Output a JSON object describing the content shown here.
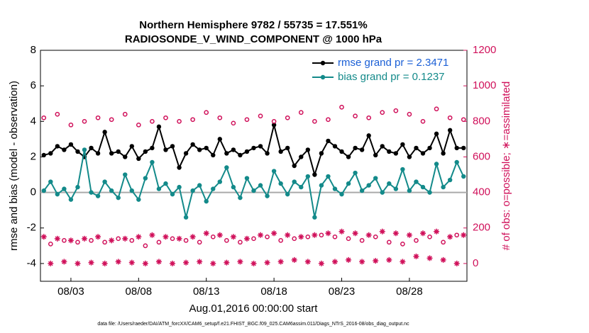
{
  "chart_data": {
    "type": "line",
    "title": "Northern Hemisphere 9782 / 55735 = 17.551%",
    "subtitle": "RADIOSONDE_V_WIND_COMPONENT @ 1000 hPa",
    "x_label": "Aug.01,2016 00:00:00 start",
    "y_label": "rmse and bias (model - observation)",
    "y2_label": "# of obs: o=possible; ∗=assimilated",
    "footnote": "data file: /Users/raeder/DAI/ATM_forcXX/CAM6_setup/f.e21.FHIST_BGC.f09_025.CAM6assim.011/Diags_NTrS_2016-08/obs_diag_output.nc",
    "x": [
      0,
      0.5,
      1,
      1.5,
      2,
      2.5,
      3,
      3.5,
      4,
      4.5,
      5,
      5.5,
      6,
      6.5,
      7,
      7.5,
      8,
      8.5,
      9,
      9.5,
      10,
      10.5,
      11,
      11.5,
      12,
      12.5,
      13,
      13.5,
      14,
      14.5,
      15,
      15.5,
      16,
      16.5,
      17,
      17.5,
      18,
      18.5,
      19,
      19.5,
      20,
      20.5,
      21,
      21.5,
      22,
      22.5,
      23,
      23.5,
      24,
      24.5,
      25,
      25.5,
      26,
      26.5,
      27,
      27.5,
      28,
      28.5,
      29,
      29.5,
      30,
      30.5,
      31
    ],
    "xlim": [
      -0.25,
      31.25
    ],
    "xticks": [
      {
        "value": 2,
        "label": "08/03"
      },
      {
        "value": 7,
        "label": "08/08"
      },
      {
        "value": 12,
        "label": "08/13"
      },
      {
        "value": 17,
        "label": "08/18"
      },
      {
        "value": 22,
        "label": "08/23"
      },
      {
        "value": 27,
        "label": "08/28"
      }
    ],
    "ylim": [
      -5,
      8
    ],
    "yticks": [
      -4,
      -2,
      0,
      2,
      4,
      6,
      8
    ],
    "y2lim": [
      -100,
      1200
    ],
    "y2ticks": [
      0,
      200,
      400,
      600,
      800,
      1000,
      1200
    ],
    "y2_color": "#d0105a",
    "hline": 0,
    "legend": "upper right",
    "series": [
      {
        "name": "rmse grand pr = 2.3471",
        "color": "#000000",
        "marker": "dot",
        "line": true,
        "values": [
          2.1,
          2.2,
          2.6,
          2.4,
          2.7,
          2.3,
          2.0,
          2.5,
          2.2,
          3.4,
          2.2,
          2.3,
          2.0,
          2.6,
          1.9,
          2.3,
          2.5,
          3.7,
          2.4,
          2.6,
          1.4,
          2.2,
          2.7,
          2.4,
          2.5,
          2.1,
          3.0,
          2.2,
          2.4,
          2.1,
          2.3,
          2.5,
          2.6,
          2.2,
          3.8,
          2.3,
          2.5,
          1.5,
          2.0,
          2.4,
          1.0,
          2.2,
          2.9,
          2.6,
          2.3,
          2.0,
          2.5,
          2.4,
          3.2,
          2.1,
          2.6,
          2.3,
          2.2,
          2.7,
          2.0,
          2.5,
          2.2,
          2.5,
          3.3,
          2.2,
          3.5,
          2.5,
          2.5
        ]
      },
      {
        "name": "bias grand pr = 0.1237",
        "color": "#138a8a",
        "marker": "dot",
        "line": true,
        "values": [
          0.1,
          0.6,
          -0.1,
          0.2,
          -0.4,
          0.3,
          2.4,
          0.0,
          -0.2,
          0.6,
          0.1,
          -0.3,
          1.0,
          0.1,
          -0.4,
          0.8,
          1.7,
          0.2,
          0.5,
          -0.1,
          0.3,
          -1.4,
          0.1,
          0.4,
          -0.5,
          0.2,
          0.6,
          1.4,
          0.3,
          -0.3,
          0.8,
          0.1,
          0.4,
          -0.2,
          1.2,
          0.5,
          -0.1,
          0.6,
          0.3,
          0.9,
          -1.4,
          0.4,
          0.9,
          0.2,
          -0.1,
          0.5,
          1.1,
          0.1,
          0.4,
          0.8,
          0.0,
          0.5,
          0.2,
          1.3,
          0.1,
          0.6,
          0.3,
          0.0,
          1.6,
          0.3,
          0.7,
          1.7,
          0.9
        ]
      },
      {
        "color": "#d0105a",
        "marker": "circle",
        "line": false,
        "axis": "y2",
        "values": [
          820,
          110,
          840,
          130,
          780,
          120,
          800,
          130,
          820,
          120,
          810,
          140,
          840,
          130,
          780,
          100,
          800,
          120,
          820,
          140,
          800,
          130,
          810,
          120,
          850,
          150,
          820,
          130,
          790,
          120,
          810,
          140,
          830,
          150,
          800,
          130,
          820,
          140,
          850,
          150,
          800,
          160,
          810,
          150,
          880,
          140,
          830,
          130,
          820,
          150,
          850,
          120,
          860,
          110,
          840,
          130,
          800,
          150,
          870,
          120,
          820,
          160,
          810
        ]
      },
      {
        "color": "#d0105a",
        "marker": "asterisk",
        "line": false,
        "axis": "y2",
        "values": [
          150,
          0,
          140,
          10,
          130,
          0,
          140,
          5,
          150,
          0,
          130,
          10,
          140,
          5,
          150,
          0,
          160,
          10,
          150,
          0,
          140,
          5,
          150,
          10,
          170,
          0,
          160,
          5,
          150,
          10,
          140,
          0,
          160,
          5,
          170,
          10,
          160,
          20,
          150,
          10,
          160,
          0,
          170,
          10,
          180,
          20,
          170,
          10,
          160,
          15,
          180,
          20,
          170,
          10,
          160,
          40,
          170,
          30,
          180,
          20,
          150,
          0,
          160
        ]
      }
    ]
  }
}
